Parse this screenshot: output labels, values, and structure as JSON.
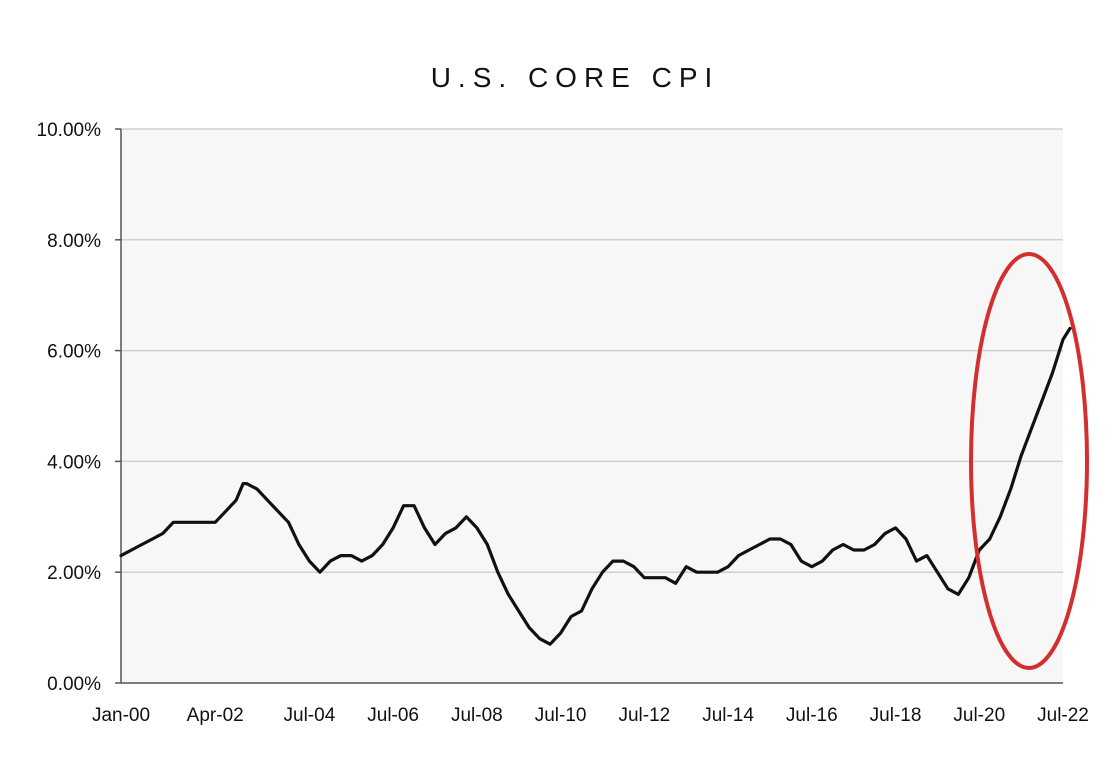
{
  "chart_data": {
    "type": "line",
    "title": "U.S. CORE CPI",
    "xlabel": "",
    "ylabel": "",
    "ylim": [
      0,
      10
    ],
    "x_tick_labels": [
      "Jan-00",
      "Apr-02",
      "Jul-04",
      "Jul-06",
      "Jul-08",
      "Jul-10",
      "Jul-12",
      "Jul-14",
      "Jul-16",
      "Jul-18",
      "Jul-20",
      "Jul-22"
    ],
    "x_tick_dates": [
      "2000-01",
      "2002-04",
      "2004-07",
      "2006-07",
      "2008-07",
      "2010-07",
      "2012-07",
      "2014-07",
      "2016-07",
      "2018-07",
      "2020-07",
      "2022-07"
    ],
    "y_tick_labels": [
      "0.00%",
      "2.00%",
      "4.00%",
      "6.00%",
      "8.00%",
      "10.00%"
    ],
    "y_tick_values": [
      0,
      2,
      4,
      6,
      8,
      10
    ],
    "grid": "horizontal",
    "annotation": "red ellipse highlighting 2021-2022 surge",
    "colors": {
      "line": "#111111",
      "annotation": "#d32f2f",
      "plot_bg": "#f7f7f7",
      "grid": "#d0d0d0"
    },
    "series": [
      {
        "values": [
          [
            "2000-01",
            2.3
          ],
          [
            "2000-04",
            2.4
          ],
          [
            "2000-07",
            2.5
          ],
          [
            "2000-10",
            2.6
          ],
          [
            "2001-01",
            2.7
          ],
          [
            "2001-04",
            2.9
          ],
          [
            "2001-07",
            2.9
          ],
          [
            "2001-10",
            2.9
          ],
          [
            "2002-01",
            2.9
          ],
          [
            "2002-04",
            2.9
          ],
          [
            "2002-07",
            3.1
          ],
          [
            "2002-10",
            3.3
          ],
          [
            "2002-12",
            3.6
          ],
          [
            "2003-01",
            3.6
          ],
          [
            "2003-04",
            3.5
          ],
          [
            "2003-07",
            3.3
          ],
          [
            "2003-10",
            3.1
          ],
          [
            "2004-01",
            2.9
          ],
          [
            "2004-04",
            2.5
          ],
          [
            "2004-07",
            2.2
          ],
          [
            "2004-10",
            2.0
          ],
          [
            "2005-01",
            2.2
          ],
          [
            "2005-04",
            2.3
          ],
          [
            "2005-07",
            2.3
          ],
          [
            "2005-10",
            2.2
          ],
          [
            "2006-01",
            2.3
          ],
          [
            "2006-04",
            2.5
          ],
          [
            "2006-07",
            2.8
          ],
          [
            "2006-10",
            3.2
          ],
          [
            "2007-01",
            3.2
          ],
          [
            "2007-04",
            2.8
          ],
          [
            "2007-07",
            2.5
          ],
          [
            "2007-10",
            2.7
          ],
          [
            "2008-01",
            2.8
          ],
          [
            "2008-04",
            3.0
          ],
          [
            "2008-07",
            2.8
          ],
          [
            "2008-10",
            2.5
          ],
          [
            "2009-01",
            2.0
          ],
          [
            "2009-04",
            1.6
          ],
          [
            "2009-07",
            1.3
          ],
          [
            "2009-10",
            1.0
          ],
          [
            "2010-01",
            0.8
          ],
          [
            "2010-04",
            0.7
          ],
          [
            "2010-07",
            0.9
          ],
          [
            "2010-10",
            1.2
          ],
          [
            "2011-01",
            1.3
          ],
          [
            "2011-04",
            1.7
          ],
          [
            "2011-07",
            2.0
          ],
          [
            "2011-10",
            2.2
          ],
          [
            "2012-01",
            2.2
          ],
          [
            "2012-04",
            2.1
          ],
          [
            "2012-07",
            1.9
          ],
          [
            "2012-10",
            1.9
          ],
          [
            "2013-01",
            1.9
          ],
          [
            "2013-04",
            1.8
          ],
          [
            "2013-07",
            2.1
          ],
          [
            "2013-10",
            2.0
          ],
          [
            "2014-01",
            2.0
          ],
          [
            "2014-04",
            2.0
          ],
          [
            "2014-07",
            2.1
          ],
          [
            "2014-10",
            2.3
          ],
          [
            "2015-01",
            2.4
          ],
          [
            "2015-04",
            2.5
          ],
          [
            "2015-07",
            2.6
          ],
          [
            "2015-10",
            2.6
          ],
          [
            "2016-01",
            2.5
          ],
          [
            "2016-04",
            2.2
          ],
          [
            "2016-07",
            2.1
          ],
          [
            "2016-10",
            2.2
          ],
          [
            "2017-01",
            2.4
          ],
          [
            "2017-04",
            2.5
          ],
          [
            "2017-07",
            2.4
          ],
          [
            "2017-10",
            2.4
          ],
          [
            "2018-01",
            2.5
          ],
          [
            "2018-04",
            2.7
          ],
          [
            "2018-07",
            2.8
          ],
          [
            "2018-10",
            2.6
          ],
          [
            "2019-01",
            2.2
          ],
          [
            "2019-04",
            2.3
          ],
          [
            "2019-07",
            2.0
          ],
          [
            "2019-10",
            1.7
          ],
          [
            "2020-01",
            1.6
          ],
          [
            "2020-04",
            1.9
          ],
          [
            "2020-07",
            2.4
          ],
          [
            "2020-10",
            2.6
          ],
          [
            "2021-01",
            3.0
          ],
          [
            "2021-04",
            3.5
          ],
          [
            "2021-07",
            4.1
          ],
          [
            "2021-10",
            4.6
          ],
          [
            "2022-01",
            5.1
          ],
          [
            "2022-04",
            5.6
          ],
          [
            "2022-07",
            6.2
          ],
          [
            "2022-09",
            6.4
          ]
        ]
      }
    ]
  }
}
